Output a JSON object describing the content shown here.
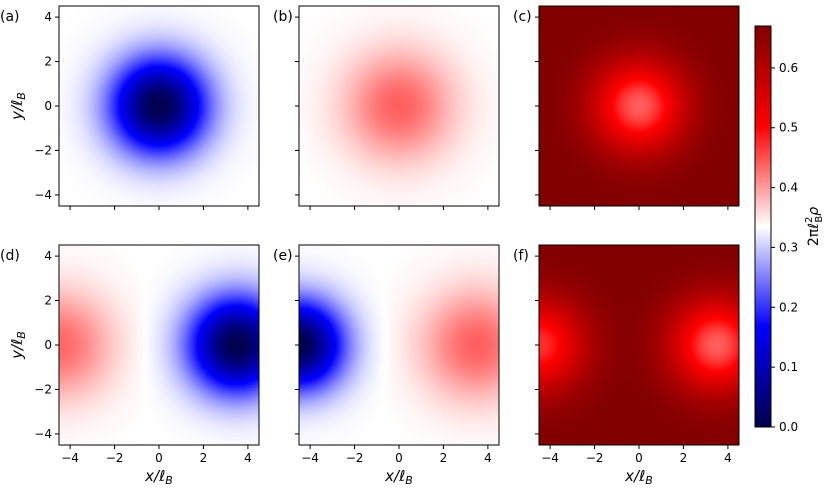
{
  "chart_data": {
    "type": "heatmap",
    "grid": "2x3",
    "colormap": "seismic",
    "x_axis": {
      "label": "x/ℓ",
      "label_sub": "B",
      "ticks": [
        -4,
        -2,
        0,
        2,
        4
      ],
      "range": [
        -4.5,
        4.5
      ]
    },
    "y_axis": {
      "label": "y/ℓ",
      "label_sub": "B",
      "ticks": [
        -4,
        -2,
        0,
        2,
        4
      ],
      "range": [
        -4.5,
        4.5
      ]
    },
    "colorbar": {
      "label": "2πℓ",
      "label_sup": "2",
      "label_sub": "B",
      "label_tail": "ρ",
      "range": [
        0.0,
        0.67
      ],
      "ticks": [
        0.0,
        0.1,
        0.2,
        0.3,
        0.4,
        0.5,
        0.6
      ],
      "tick_labels": [
        "0.0",
        "0.1",
        "0.2",
        "0.3",
        "0.4",
        "0.5",
        "0.6"
      ]
    },
    "panels": [
      {
        "label": "(a)",
        "background": 0.335,
        "blobs": [
          {
            "x": 0.0,
            "y": 0.0,
            "sigma": 1.5,
            "amp": -0.335
          }
        ]
      },
      {
        "label": "(b)",
        "background": 0.335,
        "blobs": [
          {
            "x": 0.0,
            "y": 0.0,
            "sigma": 1.75,
            "amp": 0.105
          }
        ]
      },
      {
        "label": "(c)",
        "background": 0.67,
        "blobs": [
          {
            "x": 0.0,
            "y": 0.0,
            "sigma": 1.5,
            "amp": -0.23
          }
        ]
      },
      {
        "label": "(d)",
        "background": 0.335,
        "blobs": [
          {
            "x": 3.5,
            "y": 0.0,
            "sigma": 1.5,
            "amp": -0.335
          },
          {
            "x": -4.5,
            "y": 0.0,
            "sigma": 1.7,
            "amp": 0.1
          }
        ]
      },
      {
        "label": "(e)",
        "background": 0.335,
        "blobs": [
          {
            "x": -4.5,
            "y": 0.0,
            "sigma": 1.4,
            "amp": -0.335
          },
          {
            "x": 3.5,
            "y": 0.0,
            "sigma": 1.75,
            "amp": 0.105
          }
        ]
      },
      {
        "label": "(f)",
        "background": 0.67,
        "blobs": [
          {
            "x": 3.5,
            "y": 0.0,
            "sigma": 1.5,
            "amp": -0.23
          },
          {
            "x": -4.5,
            "y": 0.0,
            "sigma": 1.5,
            "amp": -0.2
          }
        ]
      }
    ]
  }
}
